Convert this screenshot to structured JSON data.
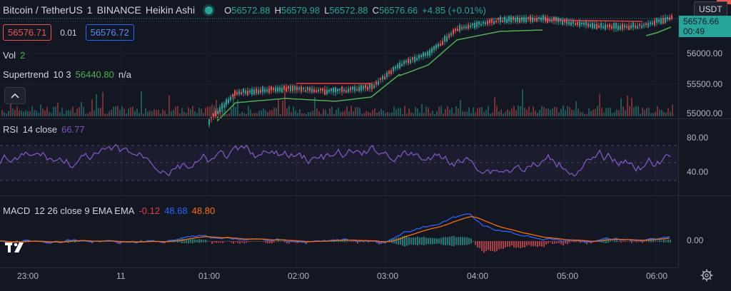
{
  "header": {
    "symbol": "Bitcoin / TetherUS",
    "interval": "1",
    "exchange": "BINANCE",
    "chart_style": "Heikin Ashi",
    "ohlc": [
      {
        "k": "O",
        "v": "56572.88"
      },
      {
        "k": "H",
        "v": "56579.98"
      },
      {
        "k": "L",
        "v": "56572.88"
      },
      {
        "k": "C",
        "v": "56576.66"
      }
    ],
    "change": "+4.85 (+0.01%)"
  },
  "trade": {
    "sell_price": "56576.71",
    "spread": "0.01",
    "buy_price": "56576.72"
  },
  "indicators": {
    "vol": {
      "label": "Vol",
      "value": "2"
    },
    "supertrend": {
      "label": "Supertrend",
      "params": "10 3",
      "value": "56440.80",
      "na": "n/a"
    },
    "rsi": {
      "label": "RSI",
      "params": "14 close",
      "value": "66.77"
    },
    "macd": {
      "label": "MACD",
      "params": "12 26 close 9 EMA EMA",
      "hist": "-0.12",
      "macd": "48.68",
      "signal": "48.80"
    }
  },
  "price_axis": {
    "currency": "USDT",
    "last_price": "56576.66",
    "countdown": "00:49",
    "labels": [
      "56000.00",
      "55500.00",
      "55000.00"
    ],
    "rsi_labels": [
      "80.00",
      "40.00"
    ],
    "macd_labels": [
      "0.00"
    ]
  },
  "time_axis": {
    "labels": [
      "23:00",
      "11",
      "01:00",
      "02:00",
      "03:00",
      "04:00",
      "05:00",
      "06:00"
    ]
  },
  "colors": {
    "up": "#26a69a",
    "down": "#ef5350",
    "rsi": "#7e57c2",
    "macd": "#2962ff",
    "signal": "#ff6d00",
    "supertrend_up": "#4caf50",
    "supertrend_down": "#f23645"
  },
  "icons": {
    "collapse": "chevron-up-icon",
    "logo": "tradingview-logo",
    "settings": "gear-icon",
    "status": "market-open-dot"
  }
}
